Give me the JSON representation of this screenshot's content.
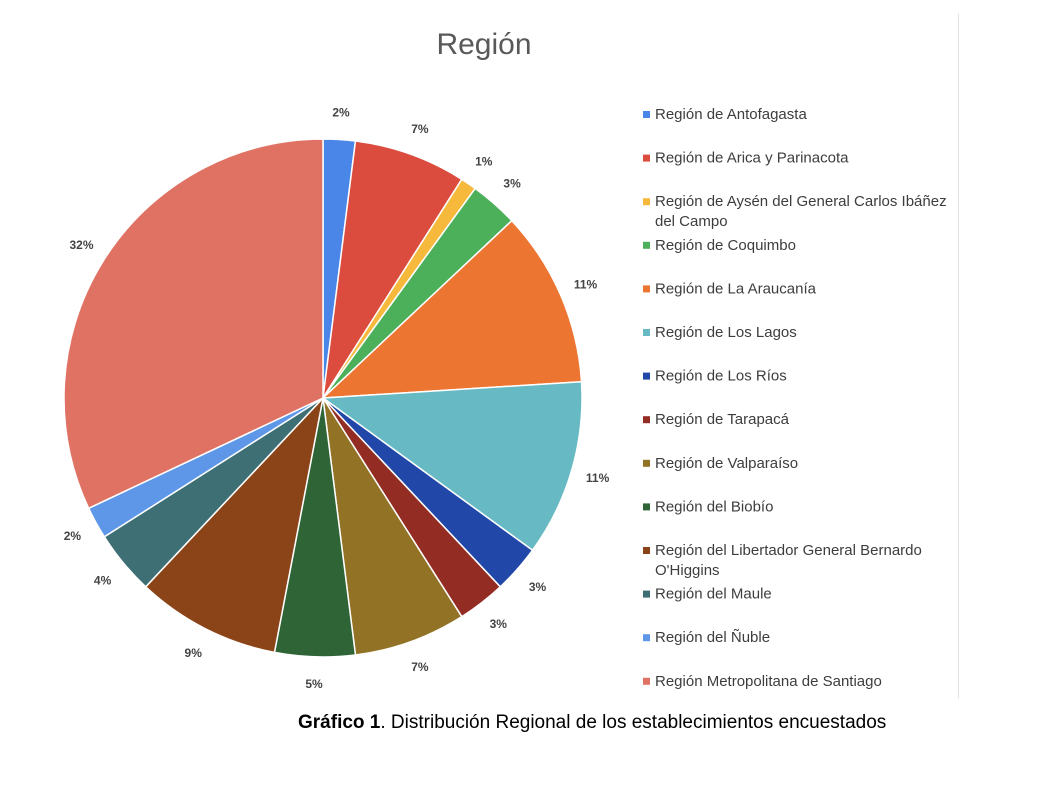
{
  "chart_data": {
    "type": "pie",
    "title": "Región",
    "legend_position": "right",
    "slices": [
      {
        "name": "Región de Antofagasta",
        "value": 2,
        "label": "2%",
        "color": "#4a86e8"
      },
      {
        "name": "Región de Arica y Parinacota",
        "value": 7,
        "label": "7%",
        "color": "#db4c3f"
      },
      {
        "name": "Región de Aysén del General Carlos Ibáñez del Campo",
        "value": 1,
        "label": "1%",
        "color": "#f6b93b"
      },
      {
        "name": "Región de Coquimbo",
        "value": 3,
        "label": "3%",
        "color": "#4caf5a"
      },
      {
        "name": "Región de La Araucanía",
        "value": 11,
        "label": "11%",
        "color": "#ed7532"
      },
      {
        "name": "Región de Los Lagos",
        "value": 11,
        "label": "11%",
        "color": "#67bac4"
      },
      {
        "name": "Región de Los Ríos",
        "value": 3,
        "label": "3%",
        "color": "#2147a8"
      },
      {
        "name": "Región de Tarapacá",
        "value": 3,
        "label": "3%",
        "color": "#932c23"
      },
      {
        "name": "Región de Valparaíso",
        "value": 7,
        "label": "7%",
        "color": "#927326"
      },
      {
        "name": "Región del Biobío",
        "value": 5,
        "label": "5%",
        "color": "#2f6436"
      },
      {
        "name": "Región del Libertador General Bernardo O'Higgins",
        "value": 9,
        "label": "9%",
        "color": "#8b4318"
      },
      {
        "name": "Región del Maule",
        "value": 4,
        "label": "4%",
        "color": "#3d6f74"
      },
      {
        "name": "Región del Ñuble",
        "value": 2,
        "label": "2%",
        "color": "#5f97e8"
      },
      {
        "name": "Región Metropolitana de Santiago",
        "value": 32,
        "label": "32%",
        "color": "#e07264"
      }
    ]
  },
  "caption": {
    "prefix": "Gráfico 1",
    "text": ". Distribución Regional  de los establecimientos encuestados"
  }
}
